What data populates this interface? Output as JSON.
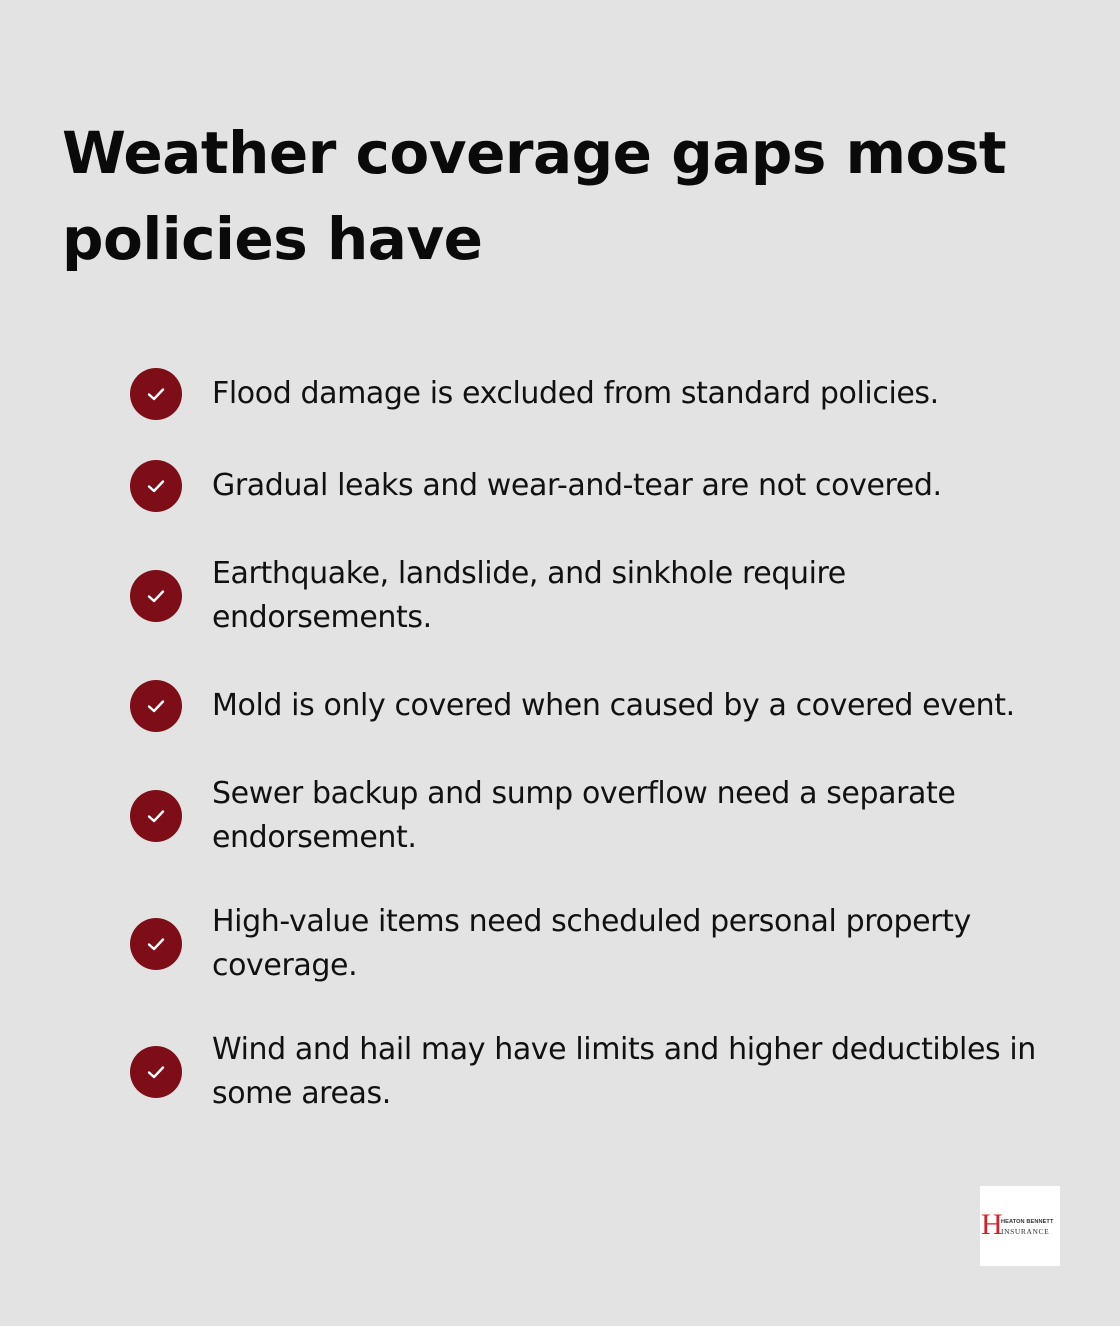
{
  "title": "Weather coverage gaps most policies have",
  "check_color": "#7d0e17",
  "items": [
    {
      "icon": "checkmark-icon",
      "text": "Flood damage is excluded from standard policies."
    },
    {
      "icon": "checkmark-icon",
      "text": "Gradual leaks and wear-and-tear are not covered."
    },
    {
      "icon": "checkmark-icon",
      "text": "Earthquake, landslide, and sinkhole require endorsements."
    },
    {
      "icon": "checkmark-icon",
      "text": "Mold is only covered when caused by a covered event."
    },
    {
      "icon": "checkmark-icon",
      "text": "Sewer backup and sump overflow need a separate endorsement."
    },
    {
      "icon": "checkmark-icon",
      "text": "High-value items need scheduled personal property coverage."
    },
    {
      "icon": "checkmark-icon",
      "text": "Wind and hail may have limits and higher deductibles in some areas."
    }
  ],
  "logo": {
    "initial": "H",
    "line1": "HEATON BENNETT",
    "line2": "INSURANCE"
  }
}
